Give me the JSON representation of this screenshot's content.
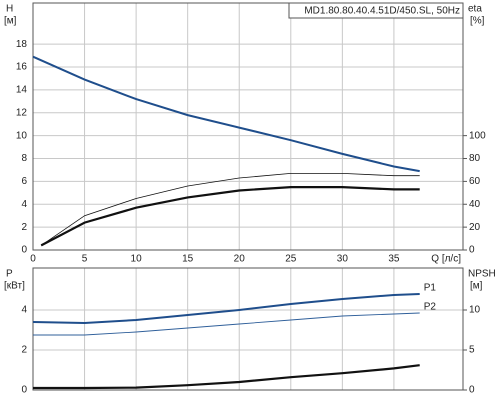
{
  "chart_data": [
    {
      "type": "line",
      "title": "MD1.80.80.40.4.51D/450.SL, 50Hz",
      "ylabel": "H",
      "yunit": "[м]",
      "y2label": "eta",
      "y2unit": "[%]",
      "xlabel": "Q [л/с]",
      "xlim": [
        0,
        41.7
      ],
      "xticks": [
        0,
        5,
        10,
        15,
        20,
        25,
        30,
        35
      ],
      "ylim": [
        0,
        21.6
      ],
      "yticks": [
        0,
        2,
        4,
        6,
        8,
        10,
        12,
        14,
        16,
        18
      ],
      "y2lim": [
        0,
        216
      ],
      "y2ticks": [
        0,
        20,
        40,
        60,
        80,
        100
      ],
      "grid": true,
      "series": [
        {
          "color": "#1f4e8c",
          "width": 2,
          "x": [
            0,
            5,
            10,
            15,
            20,
            25,
            30,
            35,
            37.5
          ],
          "values": [
            16.9,
            14.9,
            13.2,
            11.8,
            10.7,
            9.6,
            8.4,
            7.3,
            6.9
          ]
        },
        {
          "color": "#111111",
          "width": 0.8,
          "axis": "y2",
          "x": [
            0.8,
            5,
            10,
            15,
            20,
            25,
            30,
            35,
            37.5
          ],
          "values": [
            4,
            30,
            45,
            56,
            63,
            67,
            67,
            65,
            65
          ]
        },
        {
          "color": "#111111",
          "width": 2.2,
          "axis": "y2",
          "x": [
            0.8,
            5,
            10,
            15,
            20,
            25,
            30,
            35,
            37.5
          ],
          "values": [
            4,
            24,
            37,
            46,
            52,
            55,
            55,
            53,
            53
          ]
        }
      ]
    },
    {
      "type": "line",
      "ylabel": "P",
      "yunit": "[кВт]",
      "y2label": "NPSH",
      "y2unit": "[м]",
      "ylim": [
        0,
        6.1
      ],
      "yticks": [
        0,
        2,
        4
      ],
      "y2lim": [
        0,
        15.25
      ],
      "y2ticks": [
        0,
        5,
        10
      ],
      "grid": true,
      "series": [
        {
          "name": "P1",
          "color": "#1f4e8c",
          "width": 2,
          "x": [
            0,
            5,
            10,
            15,
            20,
            25,
            30,
            35,
            37.5
          ],
          "values": [
            3.4,
            3.35,
            3.5,
            3.75,
            4.0,
            4.3,
            4.55,
            4.75,
            4.8
          ]
        },
        {
          "name": "P2",
          "color": "#2f5f9a",
          "width": 0.9,
          "x": [
            0,
            5,
            10,
            15,
            20,
            25,
            30,
            35,
            37.5
          ],
          "values": [
            2.75,
            2.75,
            2.9,
            3.1,
            3.3,
            3.5,
            3.7,
            3.8,
            3.85
          ]
        },
        {
          "color": "#111111",
          "width": 2.2,
          "axis": "y2",
          "x": [
            0,
            5,
            10,
            15,
            20,
            25,
            30,
            35,
            37.5
          ],
          "values": [
            0.25,
            0.25,
            0.3,
            0.6,
            1.0,
            1.6,
            2.1,
            2.7,
            3.1
          ]
        }
      ]
    }
  ]
}
